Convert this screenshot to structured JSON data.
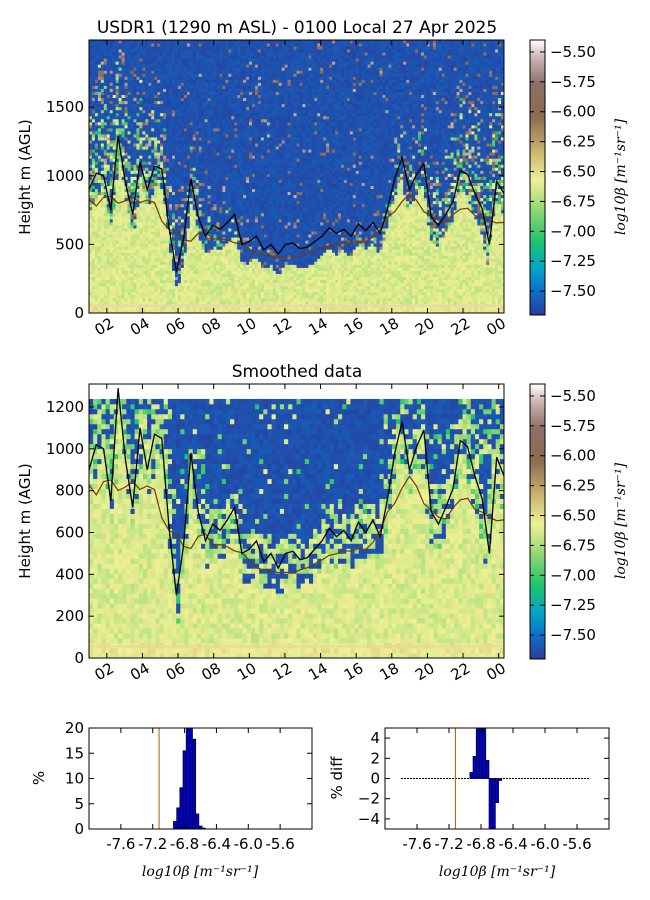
{
  "chart_data": [
    {
      "type": "heatmap",
      "title": "USDR1 (1290 m ASL) - 0100 Local 27 Apr 2025",
      "ylabel": "Height m (AGL)",
      "xlabel": "",
      "x_ticks": [
        "02",
        "04",
        "06",
        "08",
        "10",
        "12",
        "14",
        "16",
        "18",
        "20",
        "22",
        "00"
      ],
      "x_range": [
        1,
        24.3
      ],
      "y_ticks": [
        0,
        500,
        1000,
        1500
      ],
      "ylim": [
        0,
        1990
      ],
      "colorbar_label": "log10β [m⁻¹sr⁻¹]",
      "colorbar_ticks": [
        "-5.50",
        "-5.75",
        "-6.00",
        "-6.25",
        "-6.50",
        "-6.75",
        "-7.00",
        "-7.25",
        "-7.50"
      ],
      "color_range": [
        -7.7,
        -5.4
      ],
      "boundary_layer_height_m": [
        900,
        1020,
        1000,
        750,
        1290,
        950,
        720,
        1100,
        900,
        1070,
        1050,
        620,
        300,
        540,
        980,
        700,
        560,
        640,
        610,
        660,
        720,
        500,
        520,
        560,
        460,
        500,
        430,
        500,
        510,
        470,
        480,
        520,
        560,
        620,
        580,
        610,
        560,
        650,
        600,
        660,
        580,
        760,
        980,
        1130,
        900,
        1010,
        1090,
        700,
        640,
        720,
        810,
        1040,
        1010,
        870,
        760,
        500,
        960,
        870
      ]
    },
    {
      "type": "heatmap",
      "title": "Smoothed data",
      "ylabel": "Height m (AGL)",
      "xlabel": "",
      "x_ticks": [
        "02",
        "04",
        "06",
        "08",
        "10",
        "12",
        "14",
        "16",
        "18",
        "20",
        "22",
        "00"
      ],
      "x_range": [
        1,
        24.3
      ],
      "y_ticks": [
        0,
        200,
        400,
        600,
        800,
        1000,
        1200
      ],
      "ylim": [
        0,
        1310
      ],
      "colorbar_label": "log10β [m⁻¹sr⁻¹]",
      "colorbar_ticks": [
        "-5.50",
        "-5.75",
        "-6.00",
        "-6.25",
        "-6.50",
        "-6.75",
        "-7.00",
        "-7.25",
        "-7.50"
      ],
      "color_range": [
        -7.7,
        -5.4
      ],
      "boundary_layer_height_m": [
        900,
        1020,
        1000,
        750,
        1290,
        950,
        720,
        1100,
        900,
        1070,
        1050,
        620,
        300,
        540,
        980,
        700,
        560,
        640,
        610,
        660,
        720,
        500,
        520,
        560,
        460,
        500,
        430,
        500,
        510,
        470,
        480,
        520,
        560,
        620,
        580,
        610,
        560,
        650,
        600,
        660,
        580,
        760,
        980,
        1130,
        900,
        1010,
        1090,
        700,
        640,
        720,
        810,
        1040,
        1010,
        870,
        760,
        500,
        960,
        870
      ]
    },
    {
      "type": "bar",
      "title": "",
      "xlabel": "log10β [m⁻¹sr⁻¹]",
      "ylabel": "%",
      "x_ticks": [
        "-7.6",
        "-7.2",
        "-6.8",
        "-6.4",
        "-6.0",
        "-5.6"
      ],
      "xlim": [
        -8.0,
        -5.2
      ],
      "ylim": [
        0,
        20
      ],
      "y_ticks": [
        0,
        5,
        10,
        15,
        20
      ],
      "x": [
        -6.92,
        -6.88,
        -6.84,
        -6.8,
        -6.76,
        -6.72,
        -6.68,
        -6.64,
        -6.6,
        -6.56
      ],
      "values": [
        1.5,
        4.2,
        8.2,
        15.5,
        20.5,
        20.8,
        17.8,
        3.0,
        0.6,
        0.2
      ],
      "marker_line_x": -7.12
    },
    {
      "type": "bar",
      "title": "",
      "xlabel": "log10β [m⁻¹sr⁻¹]",
      "ylabel": "% diff",
      "x_ticks": [
        "-7.6",
        "-7.2",
        "-6.8",
        "-6.4",
        "-6.0",
        "-5.6"
      ],
      "xlim": [
        -8.0,
        -5.2
      ],
      "ylim": [
        -5,
        5
      ],
      "y_ticks": [
        -4,
        -2,
        0,
        2,
        4
      ],
      "x": [
        -6.92,
        -6.88,
        -6.84,
        -6.8,
        -6.76,
        -6.72,
        -6.68,
        -6.64,
        -6.6,
        -6.56
      ],
      "values": [
        0.6,
        2.2,
        5.5,
        5.5,
        5.5,
        1.8,
        -5.5,
        -5.5,
        -2.4,
        -0.2
      ],
      "marker_line_x": -7.12
    }
  ]
}
